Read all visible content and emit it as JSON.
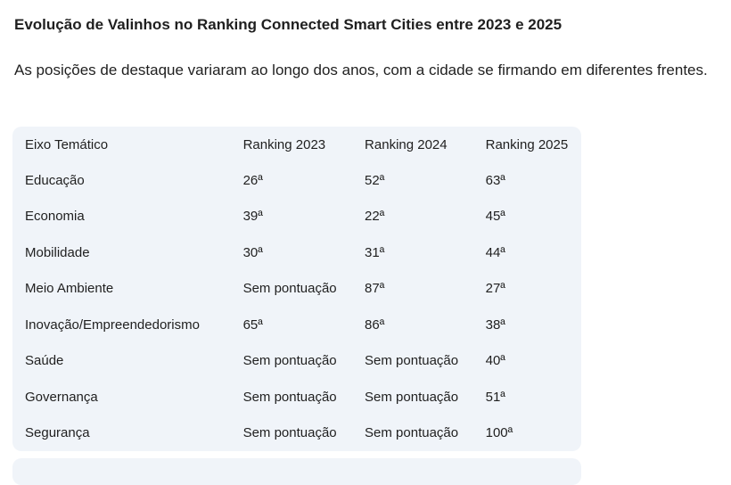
{
  "title": "Evolução de Valinhos no Ranking Connected Smart Cities entre 2023 e 2025",
  "intro": "As posições de destaque variaram ao longo dos anos, com a cidade se firmando em diferentes frentes.",
  "table": {
    "headers": [
      "Eixo Temático",
      "Ranking 2023",
      "Ranking 2024",
      "Ranking 2025"
    ],
    "rows": [
      [
        "Educação",
        "26ª",
        "52ª",
        "63ª"
      ],
      [
        "Economia",
        "39ª",
        "22ª",
        "45ª"
      ],
      [
        "Mobilidade",
        "30ª",
        "31ª",
        "44ª"
      ],
      [
        "Meio Ambiente",
        "Sem pontuação",
        "87ª",
        "27ª"
      ],
      [
        "Inovação/Empreendedorismo",
        "65ª",
        "86ª",
        "38ª"
      ],
      [
        "Saúde",
        "Sem pontuação",
        "Sem pontuação",
        "40ª"
      ],
      [
        "Governança",
        "Sem pontuação",
        "Sem pontuação",
        "51ª"
      ],
      [
        "Segurança",
        "Sem pontuação",
        "Sem pontuação",
        "100ª"
      ]
    ]
  }
}
